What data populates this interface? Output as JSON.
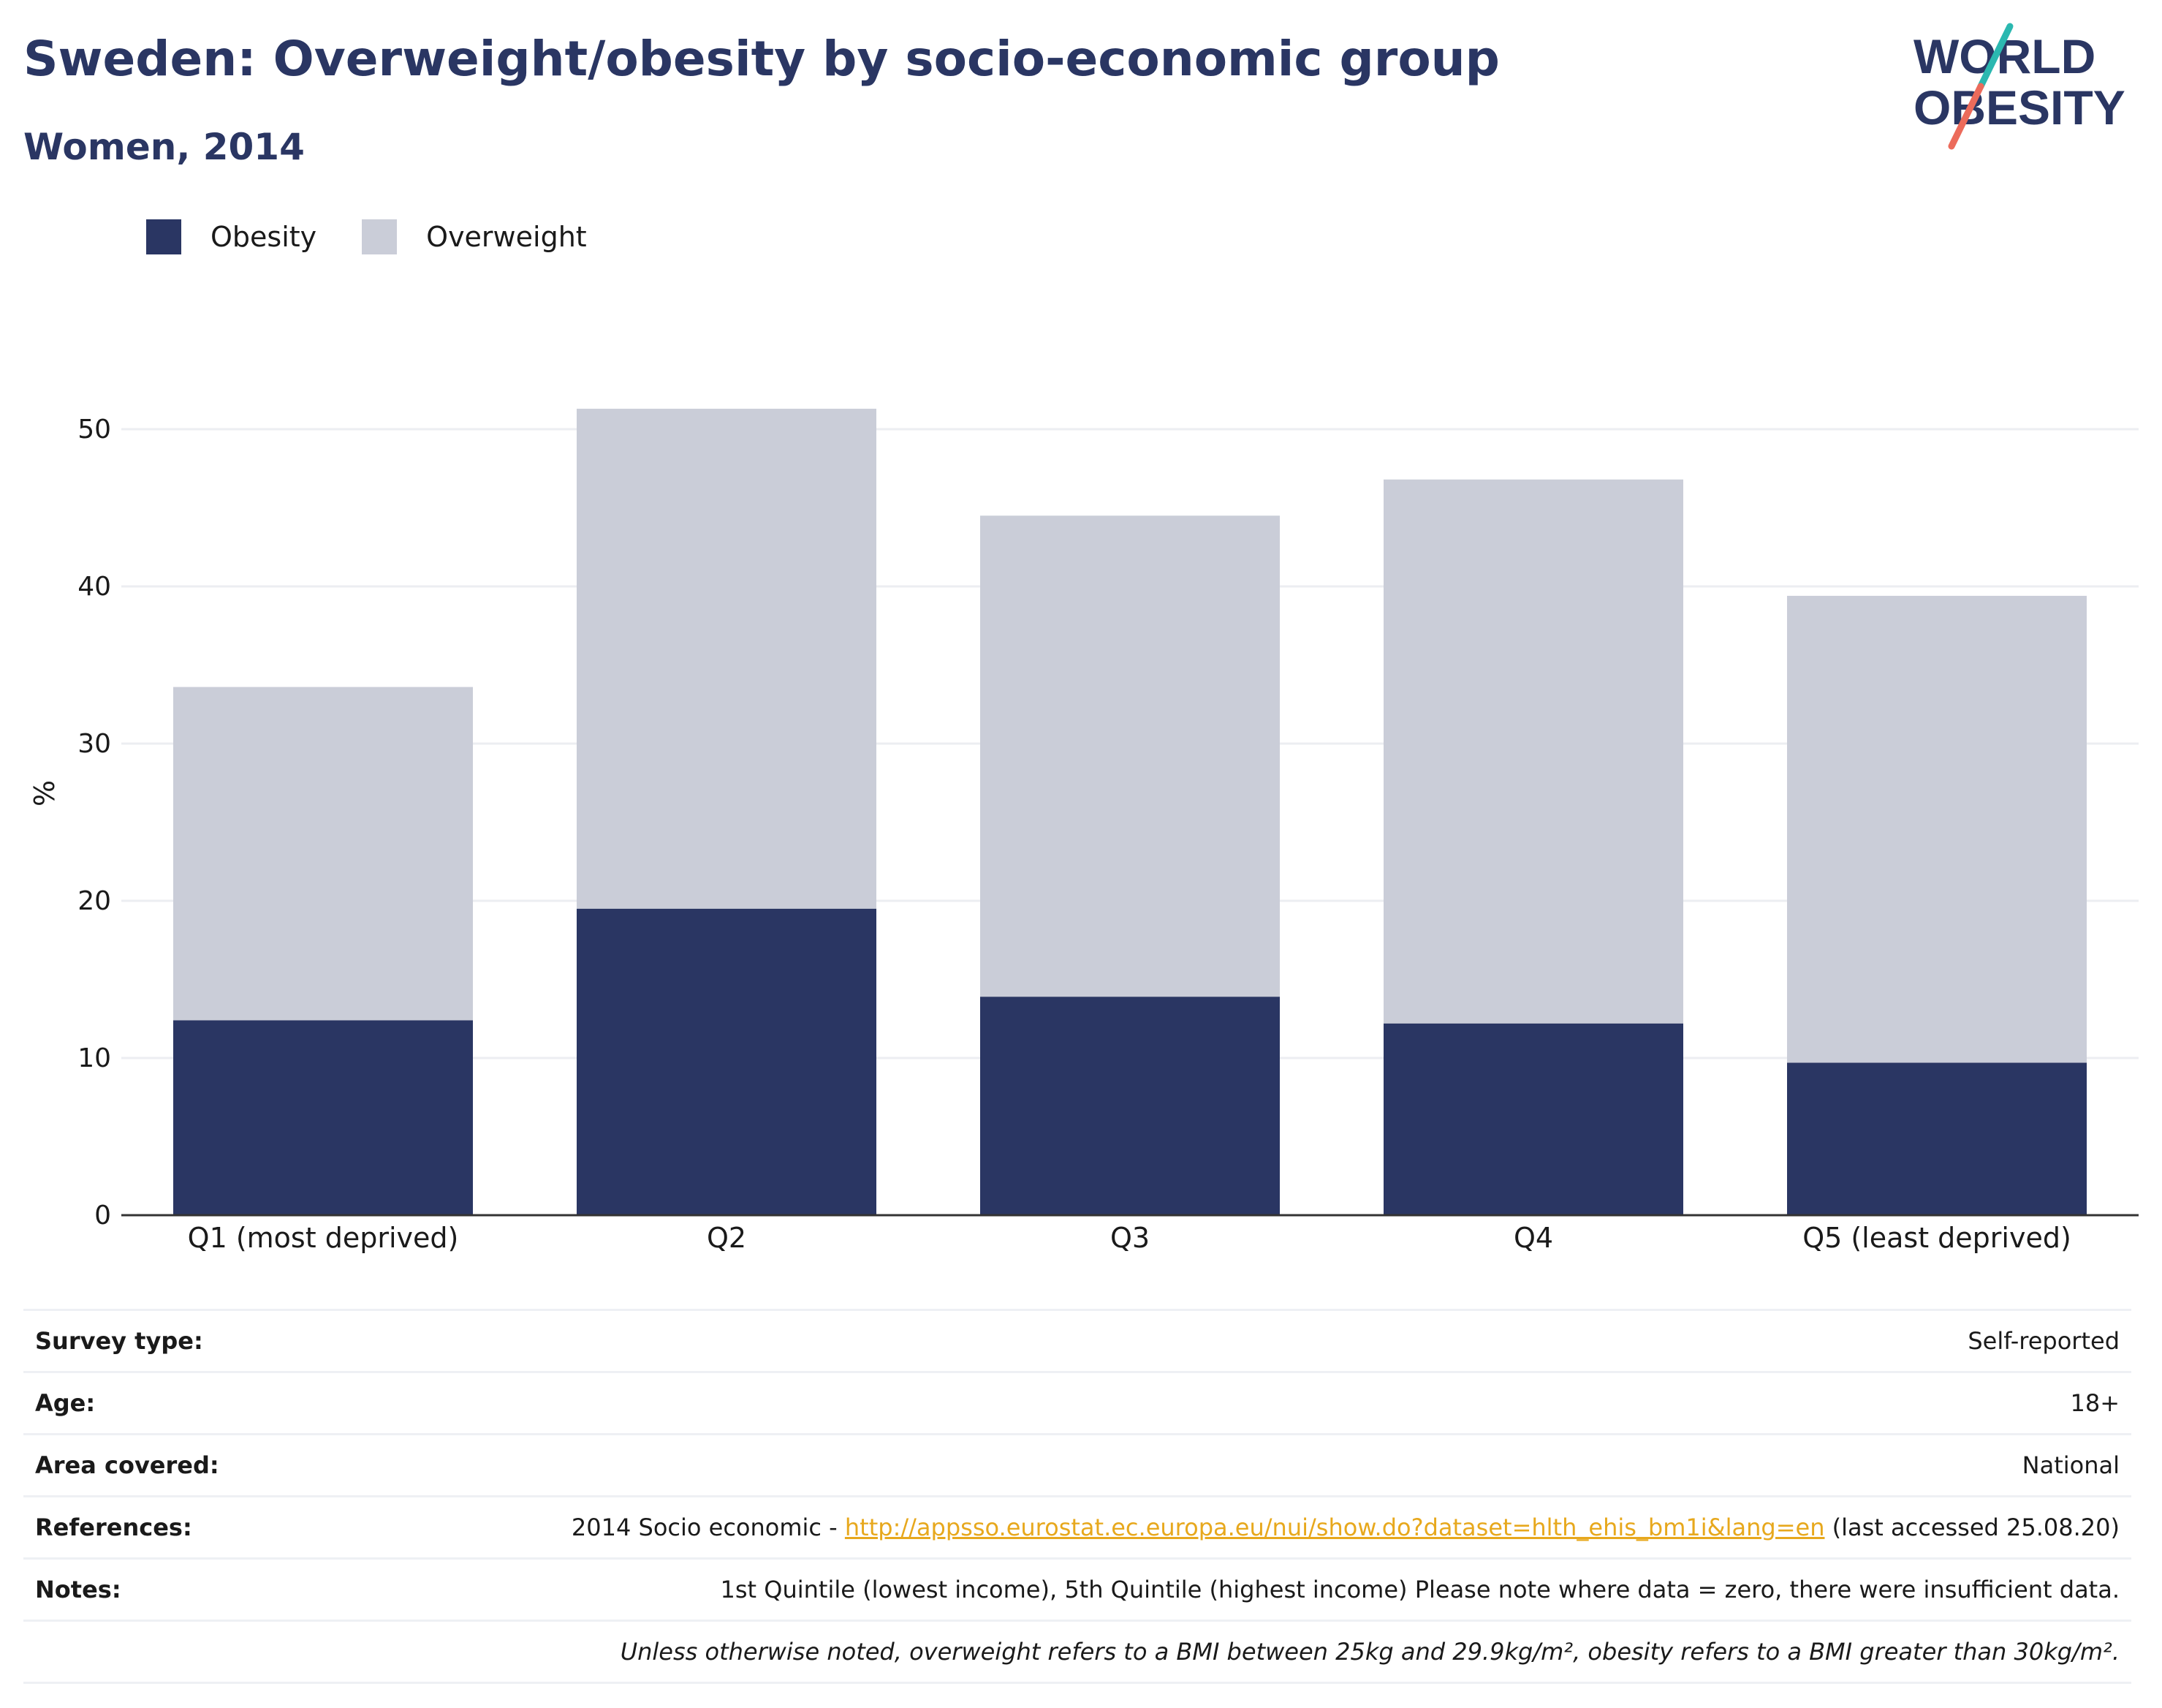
{
  "header": {
    "title": "Sweden: Overweight/obesity by socio-economic group",
    "subtitle": "Women, 2014"
  },
  "logo": {
    "line1": "WORLD",
    "line2": "OBESITY",
    "colors": {
      "text": "#2a3663",
      "slash_top": "#2bb8b0",
      "slash_bottom": "#ec6b5b"
    }
  },
  "legend": {
    "items": [
      {
        "label": "Obesity",
        "color": "#2a3663"
      },
      {
        "label": "Overweight",
        "color": "#cacdd8"
      }
    ]
  },
  "chart_data": {
    "type": "bar",
    "stacked": true,
    "categories": [
      "Q1 (most deprived)",
      "Q2",
      "Q3",
      "Q4",
      "Q5 (least deprived)"
    ],
    "series": [
      {
        "name": "Obesity",
        "color": "#2a3663",
        "values": [
          12.4,
          19.5,
          13.9,
          12.2,
          9.7
        ]
      },
      {
        "name": "Overweight",
        "color": "#cacdd8",
        "values": [
          21.2,
          31.8,
          30.6,
          34.6,
          29.7
        ]
      }
    ],
    "ylabel": "%",
    "ylim": [
      0,
      55
    ],
    "yticks": [
      0,
      10,
      20,
      30,
      40,
      50
    ],
    "grid": true,
    "legend_position": "top-left"
  },
  "info": {
    "rows": [
      {
        "label": "Survey type:",
        "value": "Self-reported"
      },
      {
        "label": "Age:",
        "value": "18+"
      },
      {
        "label": "Area covered:",
        "value": "National"
      },
      {
        "label": "References:",
        "value_prefix": "2014 Socio economic - ",
        "link": "http://appsso.eurostat.ec.europa.eu/nui/show.do?dataset=hlth_ehis_bm1i&lang=en",
        "value_suffix": " (last accessed 25.08.20)"
      },
      {
        "label": "Notes:",
        "value": "1st Quintile (lowest income), 5th Quintile (highest income) Please note where data = zero, there were insufficient data."
      }
    ],
    "footnote": "Unless otherwise noted, overweight refers to a BMI between 25kg and 29.9kg/m², obesity refers to a BMI greater than 30kg/m²."
  }
}
